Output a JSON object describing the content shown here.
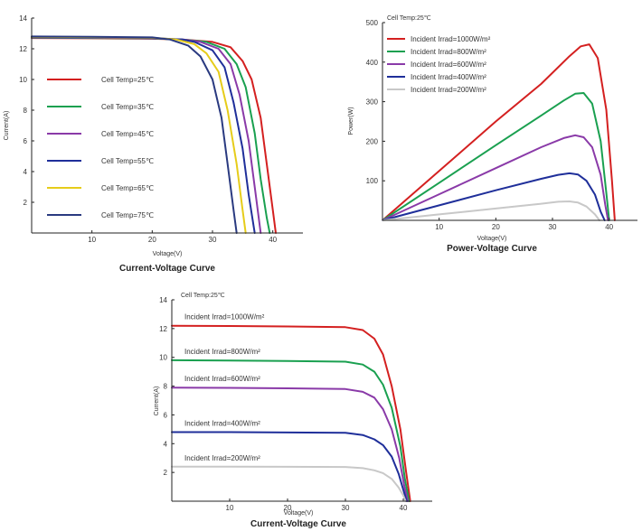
{
  "chart_data": [
    {
      "type": "line",
      "title": "Current-Voltage Curve",
      "xlabel": "Voltage(V)",
      "ylabel": "Current(A)",
      "xlim": [
        0,
        45
      ],
      "ylim": [
        0,
        14
      ],
      "xticks": [
        10,
        20,
        30,
        40
      ],
      "yticks": [
        2,
        4,
        6,
        8,
        10,
        12,
        14
      ],
      "legend_position": "left",
      "series": [
        {
          "name": "Cell Temp=25℃",
          "color": "#d42020",
          "x": [
            0,
            10,
            20,
            25,
            30,
            33,
            35,
            36.5,
            38,
            39,
            40,
            40.5
          ],
          "y": [
            12.7,
            12.68,
            12.65,
            12.6,
            12.45,
            12.1,
            11.2,
            10.0,
            7.5,
            4.5,
            1.5,
            0
          ]
        },
        {
          "name": "Cell Temp=35℃",
          "color": "#1aa050",
          "x": [
            0,
            10,
            20,
            25,
            29,
            32,
            34,
            35.5,
            37,
            38,
            39,
            39.5
          ],
          "y": [
            12.72,
            12.7,
            12.67,
            12.6,
            12.45,
            12.0,
            11.0,
            9.5,
            6.5,
            3.5,
            1.0,
            0
          ]
        },
        {
          "name": "Cell Temp=45℃",
          "color": "#8a3aa8",
          "x": [
            0,
            10,
            20,
            25,
            28,
            31,
            33,
            34.5,
            36,
            37,
            38
          ],
          "y": [
            12.74,
            12.72,
            12.68,
            12.6,
            12.45,
            12.0,
            11.0,
            9.0,
            6.0,
            3.0,
            0
          ]
        },
        {
          "name": "Cell Temp=55℃",
          "color": "#1f2f9a",
          "x": [
            0,
            10,
            20,
            25,
            27,
            30,
            32,
            33.5,
            35,
            36,
            37
          ],
          "y": [
            12.76,
            12.74,
            12.7,
            12.6,
            12.45,
            11.9,
            10.8,
            8.5,
            5.5,
            2.5,
            0
          ]
        },
        {
          "name": "Cell Temp=65℃",
          "color": "#e6cc1a",
          "x": [
            0,
            10,
            20,
            24,
            27,
            29,
            31,
            32.5,
            34,
            35,
            35.5
          ],
          "y": [
            12.78,
            12.76,
            12.72,
            12.6,
            12.3,
            11.7,
            10.5,
            8.0,
            4.5,
            1.5,
            0
          ]
        },
        {
          "name": "Cell Temp=75℃",
          "color": "#2a3a80",
          "x": [
            0,
            10,
            20,
            23,
            26,
            28,
            30,
            31.5,
            32.5,
            33.5,
            34
          ],
          "y": [
            12.8,
            12.78,
            12.74,
            12.6,
            12.2,
            11.5,
            10.0,
            7.5,
            4.5,
            1.5,
            0
          ]
        }
      ]
    },
    {
      "type": "line",
      "title": "Power-Voltage Curve",
      "xlabel": "Voltage(V)",
      "ylabel": "Power(W)",
      "annotation": "Cell Temp:25℃",
      "xlim": [
        0,
        45
      ],
      "ylim": [
        0,
        500
      ],
      "xticks": [
        10,
        20,
        30,
        40
      ],
      "yticks": [
        100,
        200,
        300,
        400,
        500
      ],
      "legend_position": "top-left",
      "series": [
        {
          "name": "Incident Irrad=1000W/m²",
          "color": "#d42020",
          "x": [
            0,
            10,
            20,
            28,
            33,
            35,
            36.5,
            38,
            39.5,
            40.5,
            41
          ],
          "y": [
            0,
            125,
            250,
            345,
            415,
            440,
            445,
            410,
            280,
            100,
            0
          ]
        },
        {
          "name": "Incident Irrad=800W/m²",
          "color": "#1aa050",
          "x": [
            0,
            10,
            20,
            28,
            32,
            34,
            35.5,
            37,
            38.5,
            39.5,
            40
          ],
          "y": [
            0,
            95,
            190,
            265,
            303,
            320,
            322,
            295,
            200,
            70,
            0
          ]
        },
        {
          "name": "Incident Irrad=600W/m²",
          "color": "#8a3aa8",
          "x": [
            0,
            10,
            20,
            28,
            32,
            34,
            35.5,
            37,
            38.5,
            39.3,
            39.8
          ],
          "y": [
            0,
            66,
            132,
            185,
            208,
            215,
            210,
            185,
            115,
            40,
            0
          ]
        },
        {
          "name": "Incident Irrad=400W/m²",
          "color": "#1f2f9a",
          "x": [
            0,
            10,
            20,
            28,
            31,
            33,
            34.5,
            36,
            37.5,
            38.5,
            39.2
          ],
          "y": [
            0,
            38,
            76,
            105,
            115,
            119,
            116,
            100,
            65,
            22,
            0
          ]
        },
        {
          "name": "Incident Irrad=200W/m²",
          "color": "#c8c8c8",
          "x": [
            0,
            10,
            20,
            28,
            31,
            33,
            34.5,
            36,
            37.5,
            38.3
          ],
          "y": [
            0,
            15,
            30,
            42,
            47,
            48,
            45,
            35,
            15,
            0
          ]
        }
      ]
    },
    {
      "type": "line",
      "title": "Current-Voltage Curve",
      "xlabel": "Voltage(V)",
      "ylabel": "Current(A)",
      "annotation": "Cell Temp:25℃",
      "xlim": [
        0,
        45
      ],
      "ylim": [
        0,
        14
      ],
      "xticks": [
        10,
        20,
        30,
        40
      ],
      "yticks": [
        2,
        4,
        6,
        8,
        10,
        12,
        14
      ],
      "legend_position": "inline",
      "series": [
        {
          "name": "Incident Irrad=1000W/m²",
          "color": "#d42020",
          "x": [
            0,
            10,
            20,
            30,
            33,
            35,
            36.5,
            38,
            39.5,
            40.5,
            41.2
          ],
          "y": [
            12.2,
            12.18,
            12.15,
            12.1,
            11.9,
            11.3,
            10.2,
            8.0,
            5.0,
            2.0,
            0
          ]
        },
        {
          "name": "Incident Irrad=800W/m²",
          "color": "#1aa050",
          "x": [
            0,
            10,
            20,
            30,
            33,
            35,
            36.5,
            38,
            39.5,
            40.3,
            41
          ],
          "y": [
            9.8,
            9.78,
            9.75,
            9.7,
            9.5,
            9.0,
            8.1,
            6.5,
            3.8,
            1.5,
            0
          ]
        },
        {
          "name": "Incident Irrad=600W/m²",
          "color": "#8a3aa8",
          "x": [
            0,
            10,
            20,
            30,
            33,
            35,
            36.5,
            38,
            39.3,
            40.2,
            40.8
          ],
          "y": [
            7.9,
            7.88,
            7.85,
            7.8,
            7.6,
            7.2,
            6.4,
            5.0,
            3.0,
            1.0,
            0
          ]
        },
        {
          "name": "Incident Irrad=400W/m²",
          "color": "#1f2f9a",
          "x": [
            0,
            10,
            20,
            30,
            33,
            35,
            36.5,
            38,
            39.2,
            40,
            40.6
          ],
          "y": [
            4.8,
            4.8,
            4.78,
            4.75,
            4.6,
            4.3,
            3.9,
            3.1,
            1.9,
            0.8,
            0
          ]
        },
        {
          "name": "Incident Irrad=200W/m²",
          "color": "#c8c8c8",
          "x": [
            0,
            10,
            20,
            30,
            33,
            35,
            36.5,
            38,
            39.2,
            40,
            40.4
          ],
          "y": [
            2.4,
            2.4,
            2.39,
            2.38,
            2.3,
            2.15,
            1.95,
            1.55,
            0.95,
            0.4,
            0
          ]
        }
      ]
    }
  ]
}
